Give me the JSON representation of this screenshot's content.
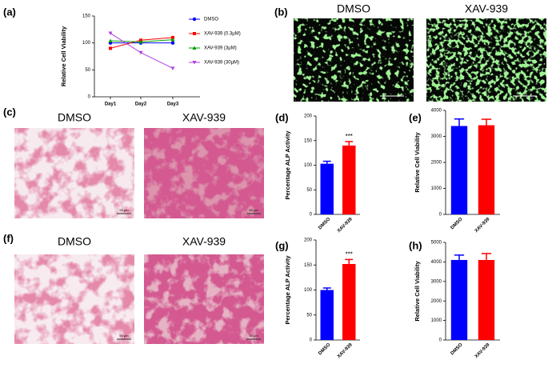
{
  "chart_data": [
    {
      "type": "line",
      "label": "(a)",
      "ylabel": "Relative Cell Viability",
      "categories": [
        "Day1",
        "Day2",
        "Day3"
      ],
      "ylim": [
        0,
        150
      ],
      "yticks": [
        0,
        50,
        100,
        150
      ],
      "series": [
        {
          "name": "DMSO",
          "color": "#0000ff",
          "values": [
            100,
            100,
            100
          ]
        },
        {
          "name": "XAV-939 (0.3μM)",
          "color": "#ff0000",
          "values": [
            90,
            105,
            110
          ]
        },
        {
          "name": "XAV-939 (3μM)",
          "color": "#00a000",
          "values": [
            104,
            102,
            106
          ]
        },
        {
          "name": "XAV-939 (30μM)",
          "color": "#b040e0",
          "values": [
            118,
            82,
            53
          ]
        }
      ]
    },
    {
      "type": "bar",
      "label": "(d)",
      "ylabel": "Percentage ALP Activity",
      "categories": [
        "DMSO",
        "XAV-939"
      ],
      "values": [
        103,
        140
      ],
      "errors": [
        5,
        8
      ],
      "colors": [
        "#0000ff",
        "#ff0000"
      ],
      "annotation": "***",
      "ylim": [
        0,
        200
      ],
      "yticks": [
        0,
        50,
        100,
        150,
        200
      ]
    },
    {
      "type": "bar",
      "label": "(e)",
      "ylabel": "Relative Cell Viability",
      "categories": [
        "DMSO",
        "XAV-939"
      ],
      "values": [
        3400,
        3430
      ],
      "errors": [
        270,
        230
      ],
      "colors": [
        "#0000ff",
        "#ff0000"
      ],
      "ylim": [
        0,
        4000
      ],
      "yticks": [
        0,
        1000,
        2000,
        3000,
        4000
      ]
    },
    {
      "type": "bar",
      "label": "(g)",
      "ylabel": "Percentage ALP Activity",
      "categories": [
        "DMSO",
        "XAV-939"
      ],
      "values": [
        100,
        152
      ],
      "errors": [
        4,
        9
      ],
      "colors": [
        "#0000ff",
        "#ff0000"
      ],
      "annotation": "***",
      "ylim": [
        0,
        200
      ],
      "yticks": [
        0,
        50,
        100,
        150,
        200
      ]
    },
    {
      "type": "bar",
      "label": "(h)",
      "ylabel": "Relative Cell Viability",
      "categories": [
        "DMSO",
        "XAV-939"
      ],
      "values": [
        4100,
        4100
      ],
      "errors": [
        250,
        330
      ],
      "colors": [
        "#0000ff",
        "#ff0000"
      ],
      "ylim": [
        0,
        5000
      ],
      "yticks": [
        0,
        1000,
        2000,
        3000,
        4000,
        5000
      ]
    }
  ],
  "images": [
    {
      "label": "(b)",
      "captions": [
        "DMSO",
        "XAV-939"
      ]
    },
    {
      "label": "(c)",
      "captions": [
        "DMSO",
        "XAV-939"
      ],
      "scale": "50 μm"
    },
    {
      "label": "(f)",
      "captions": [
        "DMSO",
        "XAV-939"
      ],
      "scale": "50 μm"
    }
  ]
}
